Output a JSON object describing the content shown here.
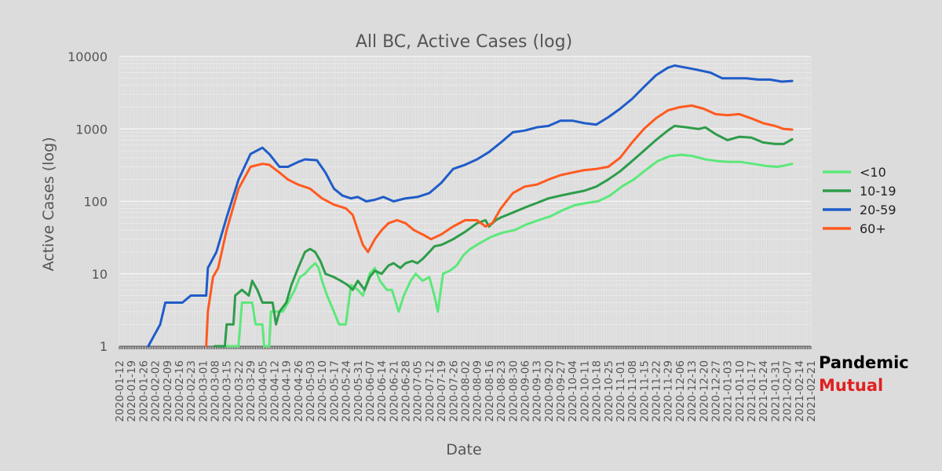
{
  "chart_data": {
    "type": "line",
    "title": "All BC, Active Cases (log)",
    "xlabel": "Date",
    "ylabel": "Active Cases (log)",
    "yscale": "log",
    "ylim": [
      1,
      10000
    ],
    "yticks": [
      "1",
      "10",
      "100",
      "1000",
      "10000"
    ],
    "xlim": [
      "2020-01-12",
      "2021-02-21"
    ],
    "xtick_step_days": 7,
    "xticks": [
      "2020-01-12",
      "2020-01-19",
      "2020-01-26",
      "2020-02-02",
      "2020-02-09",
      "2020-02-16",
      "2020-02-23",
      "2020-03-01",
      "2020-03-08",
      "2020-03-15",
      "2020-03-22",
      "2020-03-29",
      "2020-04-05",
      "2020-04-12",
      "2020-04-19",
      "2020-04-26",
      "2020-05-03",
      "2020-05-10",
      "2020-05-17",
      "2020-05-24",
      "2020-05-31",
      "2020-06-07",
      "2020-06-14",
      "2020-06-21",
      "2020-06-28",
      "2020-07-05",
      "2020-07-12",
      "2020-07-19",
      "2020-07-26",
      "2020-08-02",
      "2020-08-09",
      "2020-08-16",
      "2020-08-23",
      "2020-08-30",
      "2020-09-06",
      "2020-09-13",
      "2020-09-20",
      "2020-09-27",
      "2020-10-04",
      "2020-10-11",
      "2020-10-18",
      "2020-10-25",
      "2020-11-01",
      "2020-11-08",
      "2020-11-15",
      "2020-11-22",
      "2020-11-29",
      "2020-12-06",
      "2020-12-13",
      "2020-12-20",
      "2020-12-27",
      "2021-01-03",
      "2021-01-10",
      "2021-01-17",
      "2021-01-24",
      "2021-01-31",
      "2021-02-07",
      "2021-02-14",
      "2021-02-21"
    ],
    "grid": true,
    "legend_position": "right",
    "series": [
      {
        "name": "<10",
        "color": "#5ce87a",
        "points": [
          [
            "2020-03-15",
            1
          ],
          [
            "2020-03-22",
            1
          ],
          [
            "2020-03-24",
            4
          ],
          [
            "2020-03-30",
            4
          ],
          [
            "2020-04-01",
            2
          ],
          [
            "2020-04-05",
            2
          ],
          [
            "2020-04-06",
            1
          ],
          [
            "2020-04-09",
            1
          ],
          [
            "2020-04-10",
            3
          ],
          [
            "2020-04-17",
            3
          ],
          [
            "2020-04-20",
            4
          ],
          [
            "2020-04-24",
            6
          ],
          [
            "2020-04-27",
            9
          ],
          [
            "2020-04-30",
            10
          ],
          [
            "2020-05-03",
            12
          ],
          [
            "2020-05-06",
            14
          ],
          [
            "2020-05-08",
            12
          ],
          [
            "2020-05-10",
            8
          ],
          [
            "2020-05-13",
            5
          ],
          [
            "2020-05-17",
            3
          ],
          [
            "2020-05-20",
            2
          ],
          [
            "2020-05-24",
            2
          ],
          [
            "2020-05-27",
            7
          ],
          [
            "2020-05-31",
            6
          ],
          [
            "2020-06-03",
            5
          ],
          [
            "2020-06-07",
            10
          ],
          [
            "2020-06-10",
            12
          ],
          [
            "2020-06-13",
            8
          ],
          [
            "2020-06-17",
            6
          ],
          [
            "2020-06-20",
            6
          ],
          [
            "2020-06-24",
            3
          ],
          [
            "2020-06-27",
            5
          ],
          [
            "2020-07-01",
            8
          ],
          [
            "2020-07-04",
            10
          ],
          [
            "2020-07-08",
            8
          ],
          [
            "2020-07-12",
            9
          ],
          [
            "2020-07-15",
            5
          ],
          [
            "2020-07-17",
            3
          ],
          [
            "2020-07-20",
            10
          ],
          [
            "2020-07-24",
            11
          ],
          [
            "2020-07-28",
            13
          ],
          [
            "2020-08-01",
            18
          ],
          [
            "2020-08-05",
            22
          ],
          [
            "2020-08-10",
            26
          ],
          [
            "2020-08-17",
            32
          ],
          [
            "2020-08-24",
            37
          ],
          [
            "2020-08-31",
            40
          ],
          [
            "2020-09-07",
            48
          ],
          [
            "2020-09-14",
            55
          ],
          [
            "2020-09-21",
            62
          ],
          [
            "2020-09-28",
            75
          ],
          [
            "2020-10-05",
            88
          ],
          [
            "2020-10-12",
            95
          ],
          [
            "2020-10-19",
            100
          ],
          [
            "2020-10-26",
            120
          ],
          [
            "2020-11-02",
            160
          ],
          [
            "2020-11-09",
            200
          ],
          [
            "2020-11-16",
            270
          ],
          [
            "2020-11-23",
            360
          ],
          [
            "2020-11-30",
            420
          ],
          [
            "2020-12-07",
            440
          ],
          [
            "2020-12-14",
            420
          ],
          [
            "2020-12-21",
            380
          ],
          [
            "2020-12-28",
            360
          ],
          [
            "2021-01-04",
            350
          ],
          [
            "2021-01-11",
            350
          ],
          [
            "2021-01-18",
            330
          ],
          [
            "2021-01-25",
            310
          ],
          [
            "2021-02-01",
            300
          ],
          [
            "2021-02-05",
            310
          ],
          [
            "2021-02-10",
            330
          ]
        ]
      },
      {
        "name": "10-19",
        "color": "#2e9c4a",
        "points": [
          [
            "2020-03-08",
            1
          ],
          [
            "2020-03-14",
            1
          ],
          [
            "2020-03-15",
            2
          ],
          [
            "2020-03-19",
            2
          ],
          [
            "2020-03-20",
            5
          ],
          [
            "2020-03-24",
            6
          ],
          [
            "2020-03-28",
            5
          ],
          [
            "2020-03-30",
            8
          ],
          [
            "2020-04-02",
            6
          ],
          [
            "2020-04-05",
            4
          ],
          [
            "2020-04-08",
            4
          ],
          [
            "2020-04-11",
            4
          ],
          [
            "2020-04-13",
            2
          ],
          [
            "2020-04-15",
            3
          ],
          [
            "2020-04-19",
            4
          ],
          [
            "2020-04-22",
            7
          ],
          [
            "2020-04-26",
            12
          ],
          [
            "2020-04-30",
            20
          ],
          [
            "2020-05-03",
            22
          ],
          [
            "2020-05-06",
            20
          ],
          [
            "2020-05-09",
            15
          ],
          [
            "2020-05-12",
            10
          ],
          [
            "2020-05-17",
            9
          ],
          [
            "2020-05-21",
            8
          ],
          [
            "2020-05-25",
            7
          ],
          [
            "2020-05-28",
            6
          ],
          [
            "2020-05-31",
            8
          ],
          [
            "2020-06-04",
            6
          ],
          [
            "2020-06-07",
            9
          ],
          [
            "2020-06-10",
            11
          ],
          [
            "2020-06-14",
            10
          ],
          [
            "2020-06-18",
            13
          ],
          [
            "2020-06-21",
            14
          ],
          [
            "2020-06-25",
            12
          ],
          [
            "2020-06-28",
            14
          ],
          [
            "2020-07-02",
            15
          ],
          [
            "2020-07-05",
            14
          ],
          [
            "2020-07-08",
            16
          ],
          [
            "2020-07-12",
            20
          ],
          [
            "2020-07-15",
            24
          ],
          [
            "2020-07-19",
            25
          ],
          [
            "2020-07-22",
            27
          ],
          [
            "2020-07-26",
            30
          ],
          [
            "2020-08-02",
            38
          ],
          [
            "2020-08-09",
            50
          ],
          [
            "2020-08-14",
            55
          ],
          [
            "2020-08-16",
            45
          ],
          [
            "2020-08-20",
            55
          ],
          [
            "2020-08-23",
            60
          ],
          [
            "2020-08-30",
            70
          ],
          [
            "2020-09-06",
            82
          ],
          [
            "2020-09-13",
            95
          ],
          [
            "2020-09-20",
            110
          ],
          [
            "2020-09-27",
            120
          ],
          [
            "2020-10-04",
            130
          ],
          [
            "2020-10-11",
            140
          ],
          [
            "2020-10-18",
            160
          ],
          [
            "2020-10-25",
            200
          ],
          [
            "2020-11-01",
            260
          ],
          [
            "2020-11-08",
            360
          ],
          [
            "2020-11-15",
            500
          ],
          [
            "2020-11-22",
            700
          ],
          [
            "2020-11-29",
            950
          ],
          [
            "2020-12-03",
            1100
          ],
          [
            "2020-12-10",
            1050
          ],
          [
            "2020-12-17",
            1000
          ],
          [
            "2020-12-21",
            1050
          ],
          [
            "2020-12-27",
            850
          ],
          [
            "2021-01-03",
            700
          ],
          [
            "2021-01-10",
            780
          ],
          [
            "2021-01-17",
            760
          ],
          [
            "2021-01-24",
            650
          ],
          [
            "2021-01-31",
            620
          ],
          [
            "2021-02-05",
            620
          ],
          [
            "2021-02-10",
            720
          ]
        ]
      },
      {
        "name": "20-59",
        "color": "#1f5cc8",
        "points": [
          [
            "2020-01-29",
            1
          ],
          [
            "2020-02-05",
            2
          ],
          [
            "2020-02-08",
            4
          ],
          [
            "2020-02-15",
            4
          ],
          [
            "2020-02-18",
            4
          ],
          [
            "2020-02-23",
            5
          ],
          [
            "2020-03-03",
            5
          ],
          [
            "2020-03-04",
            12
          ],
          [
            "2020-03-09",
            20
          ],
          [
            "2020-03-15",
            60
          ],
          [
            "2020-03-22",
            200
          ],
          [
            "2020-03-29",
            450
          ],
          [
            "2020-04-05",
            550
          ],
          [
            "2020-04-09",
            450
          ],
          [
            "2020-04-15",
            300
          ],
          [
            "2020-04-20",
            300
          ],
          [
            "2020-04-26",
            350
          ],
          [
            "2020-04-30",
            380
          ],
          [
            "2020-05-07",
            370
          ],
          [
            "2020-05-12",
            250
          ],
          [
            "2020-05-17",
            150
          ],
          [
            "2020-05-22",
            120
          ],
          [
            "2020-05-27",
            110
          ],
          [
            "2020-05-31",
            115
          ],
          [
            "2020-06-05",
            100
          ],
          [
            "2020-06-10",
            105
          ],
          [
            "2020-06-15",
            115
          ],
          [
            "2020-06-21",
            100
          ],
          [
            "2020-06-28",
            110
          ],
          [
            "2020-07-05",
            115
          ],
          [
            "2020-07-12",
            130
          ],
          [
            "2020-07-19",
            180
          ],
          [
            "2020-07-26",
            280
          ],
          [
            "2020-08-02",
            320
          ],
          [
            "2020-08-09",
            380
          ],
          [
            "2020-08-16",
            480
          ],
          [
            "2020-08-23",
            650
          ],
          [
            "2020-08-30",
            900
          ],
          [
            "2020-09-06",
            950
          ],
          [
            "2020-09-13",
            1050
          ],
          [
            "2020-09-20",
            1100
          ],
          [
            "2020-09-27",
            1300
          ],
          [
            "2020-10-04",
            1300
          ],
          [
            "2020-10-11",
            1200
          ],
          [
            "2020-10-18",
            1150
          ],
          [
            "2020-10-25",
            1450
          ],
          [
            "2020-11-01",
            1900
          ],
          [
            "2020-11-08",
            2600
          ],
          [
            "2020-11-15",
            3800
          ],
          [
            "2020-11-22",
            5500
          ],
          [
            "2020-11-29",
            7000
          ],
          [
            "2020-12-03",
            7500
          ],
          [
            "2020-12-10",
            7000
          ],
          [
            "2020-12-17",
            6500
          ],
          [
            "2020-12-24",
            6000
          ],
          [
            "2020-12-31",
            5000
          ],
          [
            "2021-01-07",
            5000
          ],
          [
            "2021-01-14",
            5000
          ],
          [
            "2021-01-21",
            4800
          ],
          [
            "2021-01-28",
            4800
          ],
          [
            "2021-02-04",
            4500
          ],
          [
            "2021-02-10",
            4600
          ]
        ]
      },
      {
        "name": "60+",
        "color": "#ff5a1f",
        "points": [
          [
            "2020-03-03",
            1
          ],
          [
            "2020-03-04",
            3
          ],
          [
            "2020-03-07",
            9
          ],
          [
            "2020-03-10",
            12
          ],
          [
            "2020-03-15",
            40
          ],
          [
            "2020-03-22",
            150
          ],
          [
            "2020-03-29",
            300
          ],
          [
            "2020-04-05",
            330
          ],
          [
            "2020-04-09",
            320
          ],
          [
            "2020-04-15",
            250
          ],
          [
            "2020-04-20",
            200
          ],
          [
            "2020-04-26",
            170
          ],
          [
            "2020-05-03",
            150
          ],
          [
            "2020-05-10",
            110
          ],
          [
            "2020-05-17",
            90
          ],
          [
            "2020-05-24",
            80
          ],
          [
            "2020-05-28",
            65
          ],
          [
            "2020-05-31",
            40
          ],
          [
            "2020-06-03",
            25
          ],
          [
            "2020-06-06",
            20
          ],
          [
            "2020-06-10",
            30
          ],
          [
            "2020-06-14",
            40
          ],
          [
            "2020-06-18",
            50
          ],
          [
            "2020-06-23",
            55
          ],
          [
            "2020-06-28",
            50
          ],
          [
            "2020-07-03",
            40
          ],
          [
            "2020-07-08",
            35
          ],
          [
            "2020-07-13",
            30
          ],
          [
            "2020-07-19",
            35
          ],
          [
            "2020-07-26",
            45
          ],
          [
            "2020-08-02",
            55
          ],
          [
            "2020-08-09",
            55
          ],
          [
            "2020-08-14",
            45
          ],
          [
            "2020-08-18",
            50
          ],
          [
            "2020-08-23",
            80
          ],
          [
            "2020-08-30",
            130
          ],
          [
            "2020-09-06",
            160
          ],
          [
            "2020-09-13",
            170
          ],
          [
            "2020-09-20",
            200
          ],
          [
            "2020-09-27",
            230
          ],
          [
            "2020-10-04",
            250
          ],
          [
            "2020-10-11",
            270
          ],
          [
            "2020-10-18",
            280
          ],
          [
            "2020-10-25",
            300
          ],
          [
            "2020-11-01",
            400
          ],
          [
            "2020-11-08",
            650
          ],
          [
            "2020-11-15",
            1000
          ],
          [
            "2020-11-22",
            1400
          ],
          [
            "2020-11-29",
            1800
          ],
          [
            "2020-12-06",
            2000
          ],
          [
            "2020-12-13",
            2100
          ],
          [
            "2020-12-20",
            1900
          ],
          [
            "2020-12-27",
            1600
          ],
          [
            "2021-01-03",
            1550
          ],
          [
            "2021-01-10",
            1600
          ],
          [
            "2021-01-17",
            1400
          ],
          [
            "2021-01-24",
            1200
          ],
          [
            "2021-01-31",
            1100
          ],
          [
            "2021-02-05",
            1000
          ],
          [
            "2021-02-10",
            980
          ]
        ]
      }
    ]
  },
  "branding": {
    "line1": "Pandemic",
    "line1_color": "#000000",
    "line2": "Mutual",
    "line2_color": "#e02020"
  }
}
